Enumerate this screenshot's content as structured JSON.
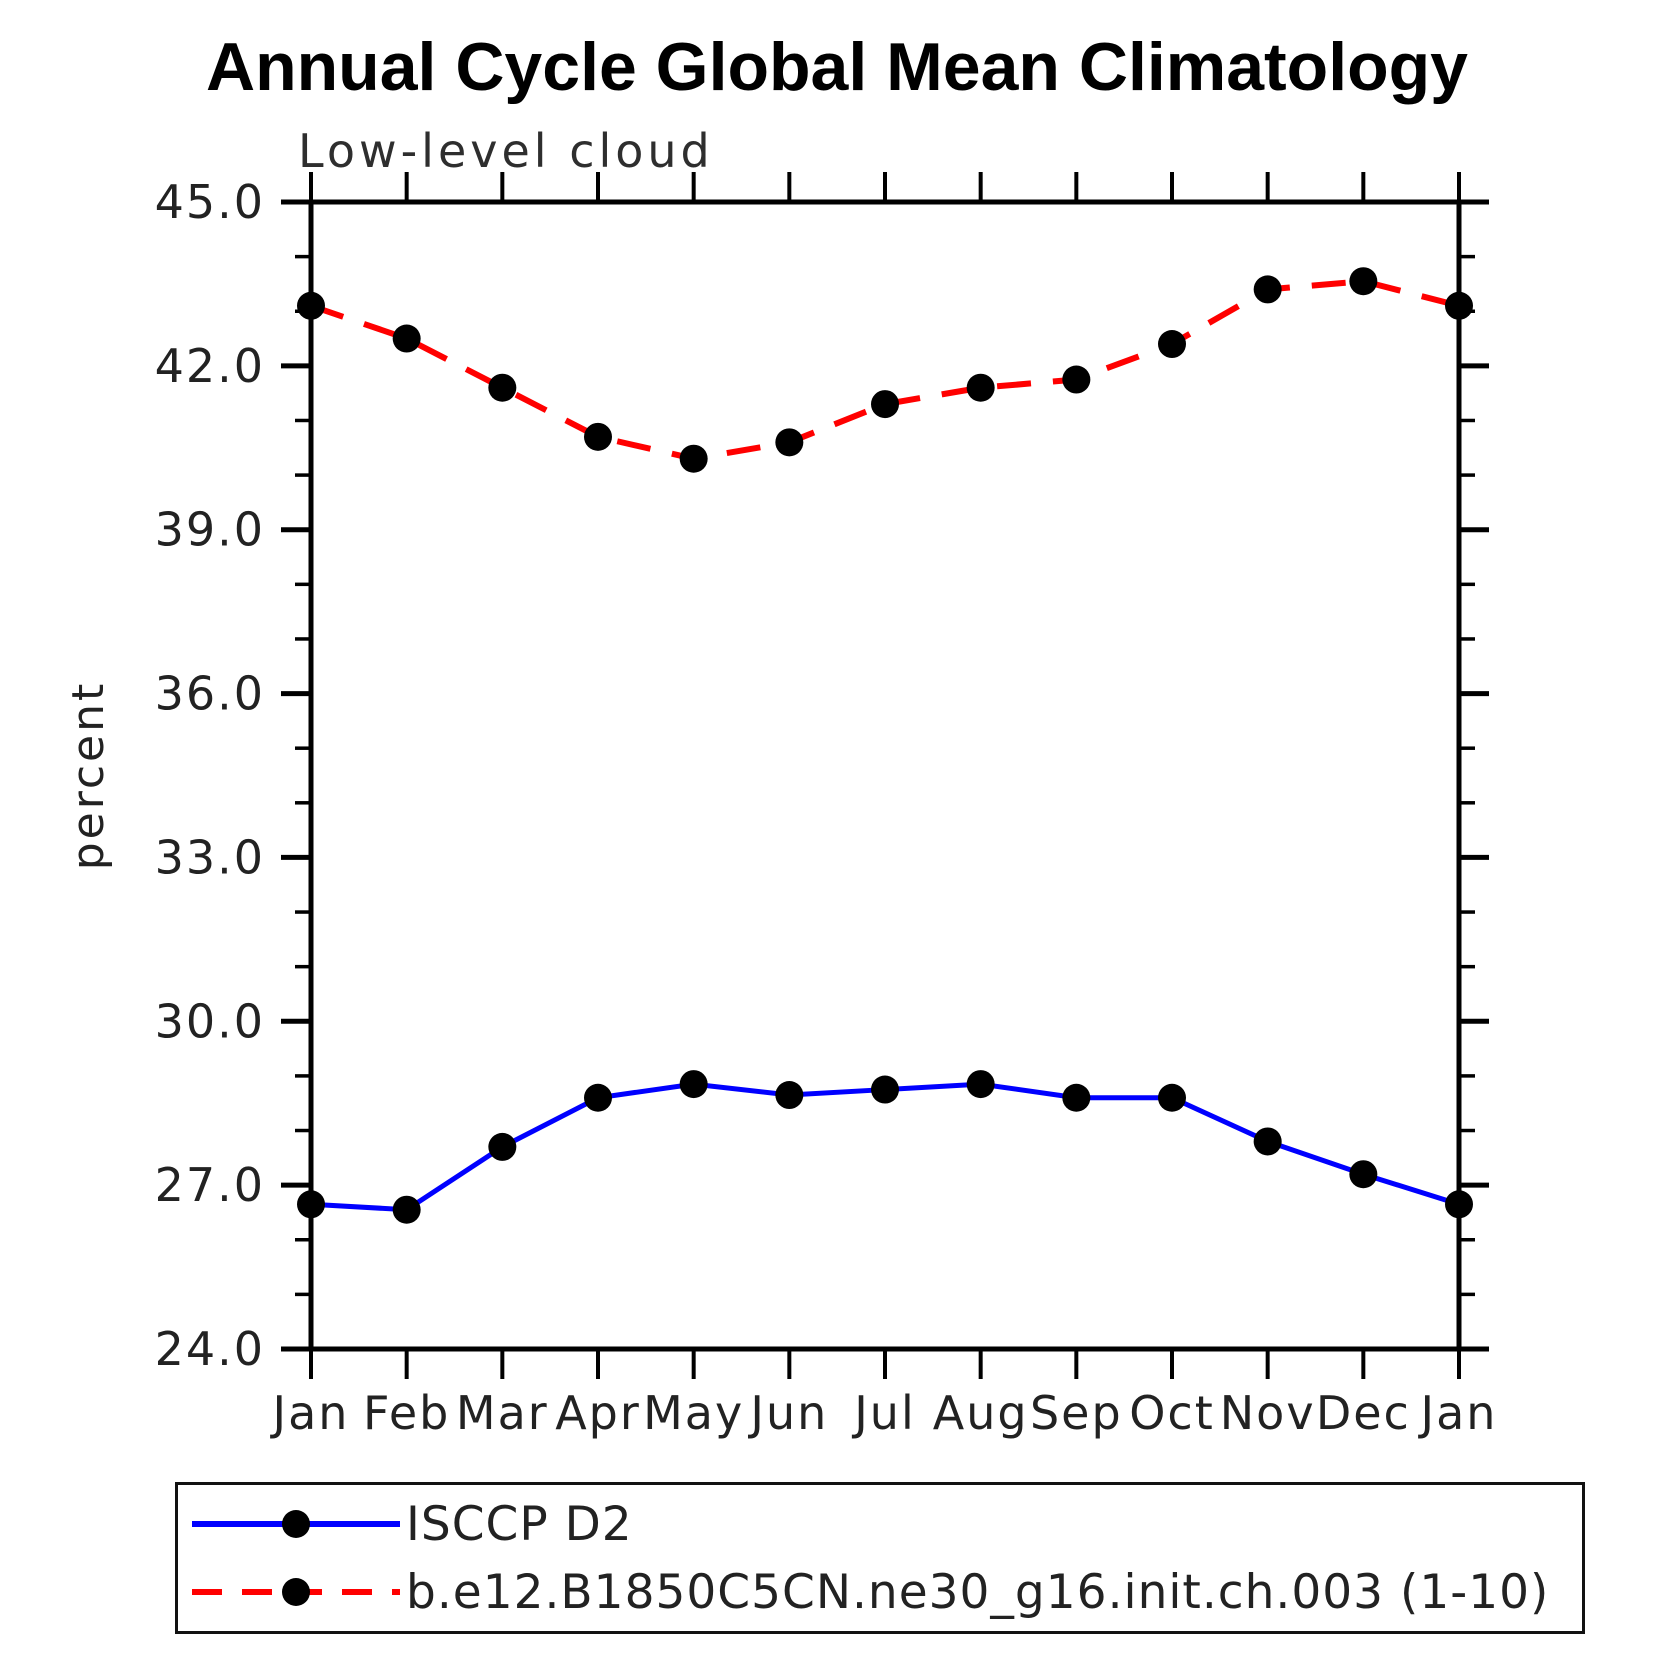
{
  "page": {
    "background": "#ffffff"
  },
  "chart_data": {
    "type": "line",
    "title": "Annual Cycle Global Mean Climatology",
    "subtitle": "Low-level cloud",
    "ylabel": "percent",
    "categories": [
      "Jan",
      "Feb",
      "Mar",
      "Apr",
      "May",
      "Jun",
      "Jul",
      "Aug",
      "Sep",
      "Oct",
      "Nov",
      "Dec",
      "Jan"
    ],
    "ylim": [
      24.0,
      45.0
    ],
    "ymajor_step": 3.0,
    "yminor_step": 1.0,
    "ytick_labels": [
      "45.0",
      "42.0",
      "39.0",
      "36.0",
      "33.0",
      "30.0",
      "27.0",
      "24.0"
    ],
    "grid": false,
    "legend_position": "bottom-left-box",
    "series": [
      {
        "name": "ISCCP D2",
        "color": "#0000ff",
        "line_style": "solid",
        "marker": "circle",
        "marker_color": "#000000",
        "values": [
          26.65,
          26.55,
          27.7,
          28.6,
          28.85,
          28.65,
          28.75,
          28.85,
          28.6,
          28.6,
          27.8,
          27.2,
          26.65
        ]
      },
      {
        "name": "b.e12.B1850C5CN.ne30_g16.init.ch.003 (1-10)",
        "color": "#ff0000",
        "line_style": "dashed",
        "marker": "circle",
        "marker_color": "#000000",
        "values": [
          43.1,
          42.5,
          41.6,
          40.7,
          40.3,
          40.6,
          41.3,
          41.6,
          41.75,
          42.4,
          43.4,
          43.55,
          43.1
        ]
      }
    ],
    "axis_color": "#000000",
    "text_color": "#222222"
  }
}
